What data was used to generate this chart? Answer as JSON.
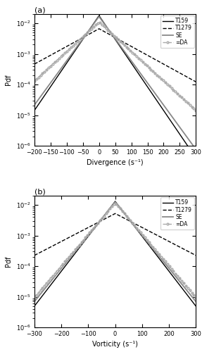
{
  "panel_a": {
    "title": "(a)",
    "xlabel": "Divergence (s⁻¹)",
    "ylabel": "Pdf",
    "xlim": [
      -200,
      300
    ],
    "ylim": [
      1e-06,
      0.02
    ],
    "series": {
      "T159": {
        "b": 28,
        "color": "#000000",
        "linestyle": "-",
        "linewidth": 1.0,
        "label": "T159"
      },
      "T1279": {
        "b": 75,
        "color": "#000000",
        "linestyle": "--",
        "linewidth": 1.0,
        "label": "T1279"
      },
      "SE": {
        "b": 30,
        "color": "#888888",
        "linestyle": "-",
        "linewidth": 1.3,
        "label": "SE"
      },
      "DA": {
        "b": 45,
        "color": "#aaaaaa",
        "linestyle": "--",
        "linewidth": 1.0,
        "label": "=DA",
        "marker": "o",
        "markersize": 2.0
      }
    },
    "xticks": [
      -200,
      -150,
      -100,
      -50,
      0,
      50,
      100,
      150,
      200,
      250,
      300
    ],
    "yticks_log": [
      -6,
      -5,
      -4,
      -3,
      -2
    ]
  },
  "panel_b": {
    "title": "(b)",
    "xlabel": "Vorticity (s⁻¹)",
    "ylabel": "Pdf",
    "xlim": [
      -300,
      300
    ],
    "ylim": [
      1e-06,
      0.02
    ],
    "series": {
      "T159": {
        "b": 38,
        "color": "#000000",
        "linestyle": "-",
        "linewidth": 1.0,
        "label": "T159"
      },
      "T1279": {
        "b": 95,
        "color": "#000000",
        "linestyle": "--",
        "linewidth": 1.0,
        "label": "T1279"
      },
      "SE": {
        "b": 40,
        "color": "#888888",
        "linestyle": "-",
        "linewidth": 1.3,
        "label": "SE"
      },
      "DA": {
        "b": 42,
        "color": "#aaaaaa",
        "linestyle": "--",
        "linewidth": 1.0,
        "label": "=DA",
        "marker": "o",
        "markersize": 2.0
      }
    },
    "xticks": [
      -300,
      -200,
      -100,
      0,
      100,
      200,
      300
    ],
    "yticks_log": [
      -6,
      -5,
      -4,
      -3,
      -2
    ]
  },
  "legend_labels": [
    "T159",
    "T1279",
    "SE",
    "=DA"
  ],
  "legend_colors": [
    "#000000",
    "#000000",
    "#888888",
    "#aaaaaa"
  ],
  "legend_linestyles": [
    "-",
    "--",
    "-",
    "--"
  ]
}
